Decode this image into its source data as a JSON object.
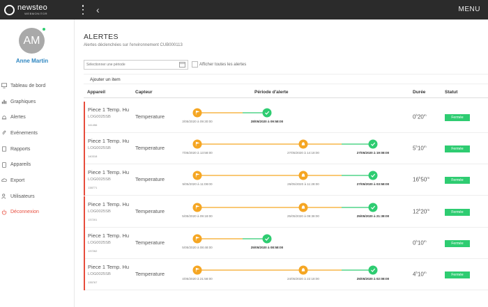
{
  "brand": {
    "name": "newsteo",
    "sub": "WEBMONITOR"
  },
  "topbar": {
    "back_glyph": "‹",
    "menu_label": "MENU"
  },
  "user": {
    "initials": "AM",
    "name": "Anne Martin"
  },
  "nav": [
    {
      "label": "Tableau de bord",
      "icon": "monitor-icon"
    },
    {
      "label": "Graphiques",
      "icon": "bar-chart-icon"
    },
    {
      "label": "Alertes",
      "icon": "bell-icon"
    },
    {
      "label": "Evénements",
      "icon": "paperclip-icon"
    },
    {
      "label": "Rapports",
      "icon": "document-icon"
    },
    {
      "label": "Appareils",
      "icon": "tablet-icon"
    },
    {
      "label": "Export",
      "icon": "cloud-icon"
    },
    {
      "label": "Utilisateurs",
      "icon": "users-icon"
    },
    {
      "label": "Déconnexion",
      "icon": "power-icon"
    }
  ],
  "page": {
    "title": "ALERTES",
    "subtitle": "Alertes déclenchées sur l'environnement CUB000113",
    "date_placeholder": "Sélectionner une période",
    "show_all_label": "Afficher toutes les alertes",
    "add_item_label": "Ajouter un item"
  },
  "table": {
    "headers": {
      "appareil": "Appareil",
      "capteur": "Capteur",
      "periode": "Période d'alerte",
      "duree": "Durée",
      "statut": "Statut"
    },
    "rows": [
      {
        "name": "Piece 1 Temp. Hu",
        "code": "LOG0025SB",
        "id": "141456",
        "sensor": "Temperature",
        "has_mid": false,
        "start": "3/05/2020 à 09:30:00",
        "mid": "",
        "end": "28/05/2020 à 09:58:00",
        "dur_a": "0",
        "dur_a_unit": "h",
        "dur_b": "20",
        "dur_b_unit": "m",
        "status": "Fermée"
      },
      {
        "name": "Piece 1 Temp. Hu",
        "code": "LOG0025SB",
        "id": "140318",
        "sensor": "Temperature",
        "has_mid": true,
        "start": "7/05/2020 à 13:58:00",
        "mid": "27/05/2020 à 14:18:00",
        "end": "27/05/2020 à 19:08:00",
        "dur_a": "5",
        "dur_a_unit": "h",
        "dur_b": "10",
        "dur_b_unit": "m",
        "status": "Fermée"
      },
      {
        "name": "Piece 1 Temp. Hu",
        "code": "LOG0025SB",
        "id": "138771",
        "sensor": "Temperature",
        "has_mid": true,
        "start": "5/05/2020 à 11:08:00",
        "mid": "26/05/2020 à 11:28:00",
        "end": "27/05/2020 à 03:58:00",
        "dur_a": "16",
        "dur_a_unit": "h",
        "dur_b": "50",
        "dur_b_unit": "m",
        "status": "Fermée"
      },
      {
        "name": "Piece 1 Temp. Hu",
        "code": "LOG0025SB",
        "id": "137201",
        "sensor": "Temperature",
        "has_mid": true,
        "start": "5/05/2020 à 09:18:00",
        "mid": "25/05/2020 à 09:38:00",
        "end": "25/05/2020 à 21:38:00",
        "dur_a": "12",
        "dur_a_unit": "h",
        "dur_b": "20",
        "dur_b_unit": "m",
        "status": "Fermée"
      },
      {
        "name": "Piece 1 Temp. Hu",
        "code": "LOG0025SB",
        "id": "137262",
        "sensor": "Temperature",
        "has_mid": false,
        "start": "5/05/2020 à 08:48:00",
        "mid": "",
        "end": "25/05/2020 à 08:58:00",
        "dur_a": "0",
        "dur_a_unit": "h",
        "dur_b": "10",
        "dur_b_unit": "m",
        "status": "Fermée"
      },
      {
        "name": "Piece 1 Temp. Hu",
        "code": "LOG0025SB",
        "id": "135767",
        "sensor": "Temperature",
        "has_mid": true,
        "start": "4/05/2020 à 21:58:00",
        "mid": "24/05/2020 à 22:18:00",
        "end": "25/05/2020 à 02:08:00",
        "dur_a": "4",
        "dur_a_unit": "h",
        "dur_b": "10",
        "dur_b_unit": "m",
        "status": "Fermée"
      }
    ]
  },
  "colors": {
    "accent_blue": "#2e86c1",
    "alert_red": "#e74c3c",
    "orange": "#f5a623",
    "green": "#2ecc71",
    "topbar": "#2b2b2b"
  }
}
